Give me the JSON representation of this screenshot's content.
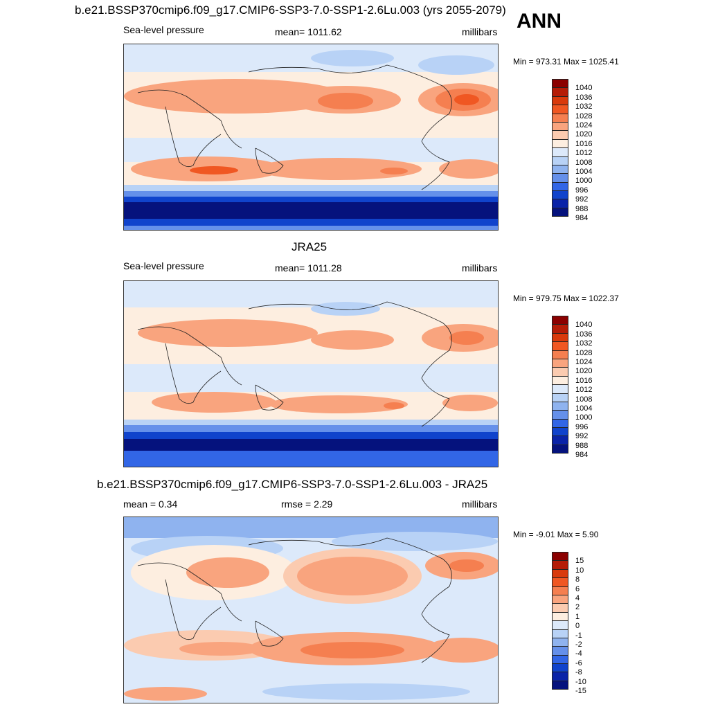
{
  "season": "ANN",
  "panels": [
    {
      "title": "b.e21.BSSP370cmip6.f09_g17.CMIP6-SSP3-7.0-SSP1-2.6Lu.003 (yrs 2055-2079)",
      "left_label": "Sea-level pressure",
      "center_label": "mean= 1011.62",
      "units": "millibars",
      "minmax": "Min = 973.31 Max = 1025.41",
      "kind": "abs"
    },
    {
      "title": "JRA25",
      "left_label": "Sea-level pressure",
      "center_label": "mean= 1011.28",
      "units": "millibars",
      "minmax": "Min = 979.75 Max = 1022.37",
      "kind": "abs"
    },
    {
      "title": "b.e21.BSSP370cmip6.f09_g17.CMIP6-SSP3-7.0-SSP1-2.6Lu.003 - JRA25",
      "left_label": "mean =   0.34",
      "center_label": "rmse =   2.29",
      "units": "millibars",
      "minmax": "Min =  -9.01 Max =   5.90",
      "kind": "diff"
    }
  ],
  "colorbars": {
    "abs": {
      "labels": [
        "1040",
        "1036",
        "1032",
        "1028",
        "1024",
        "1020",
        "1016",
        "1012",
        "1008",
        "1004",
        "1000",
        "996",
        "992",
        "988",
        "984"
      ],
      "colors": [
        "#8b0000",
        "#b51c07",
        "#d93a0c",
        "#f05722",
        "#f57f50",
        "#f9a47e",
        "#fbcbb0",
        "#fdeee0",
        "#dce9fa",
        "#b8d2f6",
        "#8fb3ef",
        "#6590ea",
        "#3266e6",
        "#1043cc",
        "#0a23a8",
        "#05127d"
      ]
    },
    "diff": {
      "labels": [
        "15",
        "10",
        "8",
        "6",
        "4",
        "2",
        "1",
        "0",
        "-1",
        "-2",
        "-4",
        "-6",
        "-8",
        "-10",
        "-15"
      ],
      "colors": [
        "#8b0000",
        "#b51c07",
        "#d93a0c",
        "#f05722",
        "#f57f50",
        "#f9a47e",
        "#fbcbb0",
        "#fdeee0",
        "#dce9fa",
        "#b8d2f6",
        "#8fb3ef",
        "#6590ea",
        "#3266e6",
        "#1043cc",
        "#0a23a8",
        "#05127d"
      ]
    }
  }
}
